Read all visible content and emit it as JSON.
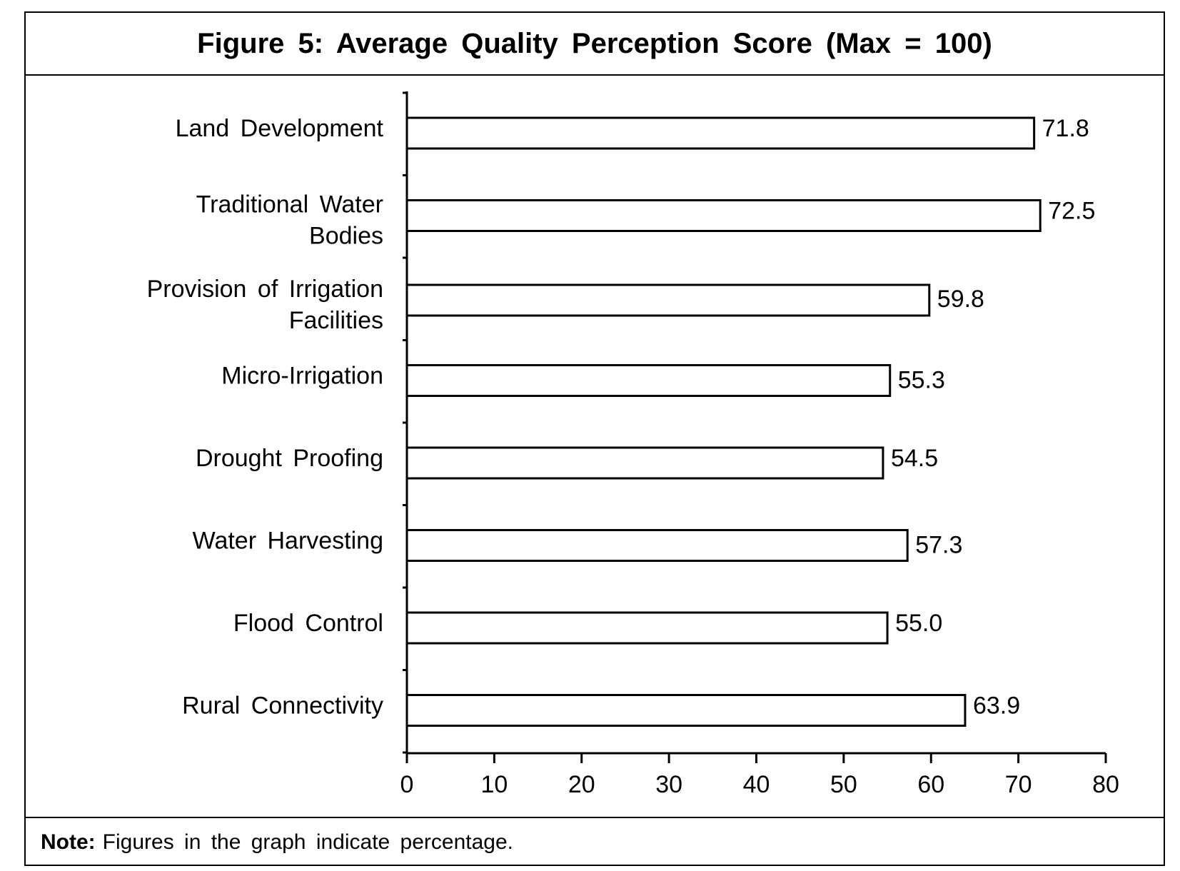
{
  "figure": {
    "title": "Figure 5: Average Quality Perception Score (Max = 100)",
    "note_label": "Note:",
    "note_text": "Figures in the graph indicate percentage."
  },
  "chart_data": {
    "type": "bar",
    "orientation": "horizontal",
    "title": "Figure 5: Average Quality Perception Score (Max = 100)",
    "categories": [
      [
        "Land Development"
      ],
      [
        "Traditional Water",
        "Bodies"
      ],
      [
        "Provision of Irrigation",
        "Facilities"
      ],
      [
        "Micro-Irrigation"
      ],
      [
        "Drought Proofing"
      ],
      [
        "Water Harvesting"
      ],
      [
        "Flood Control"
      ],
      [
        "Rural Connectivity"
      ]
    ],
    "values": [
      71.8,
      72.5,
      59.8,
      55.3,
      54.5,
      57.3,
      55.0,
      63.9
    ],
    "value_labels": [
      "71.8",
      "72.5",
      "59.8",
      "55.3",
      "54.5",
      "57.3",
      "55.0",
      "63.9"
    ],
    "xlim": [
      0,
      80
    ],
    "xticks": [
      0,
      10,
      20,
      30,
      40,
      50,
      60,
      70,
      80
    ],
    "xlabel": "",
    "ylabel": "",
    "bar_fill": "#ffffff",
    "bar_stroke": "#000000",
    "grid": false,
    "legend": "none"
  }
}
